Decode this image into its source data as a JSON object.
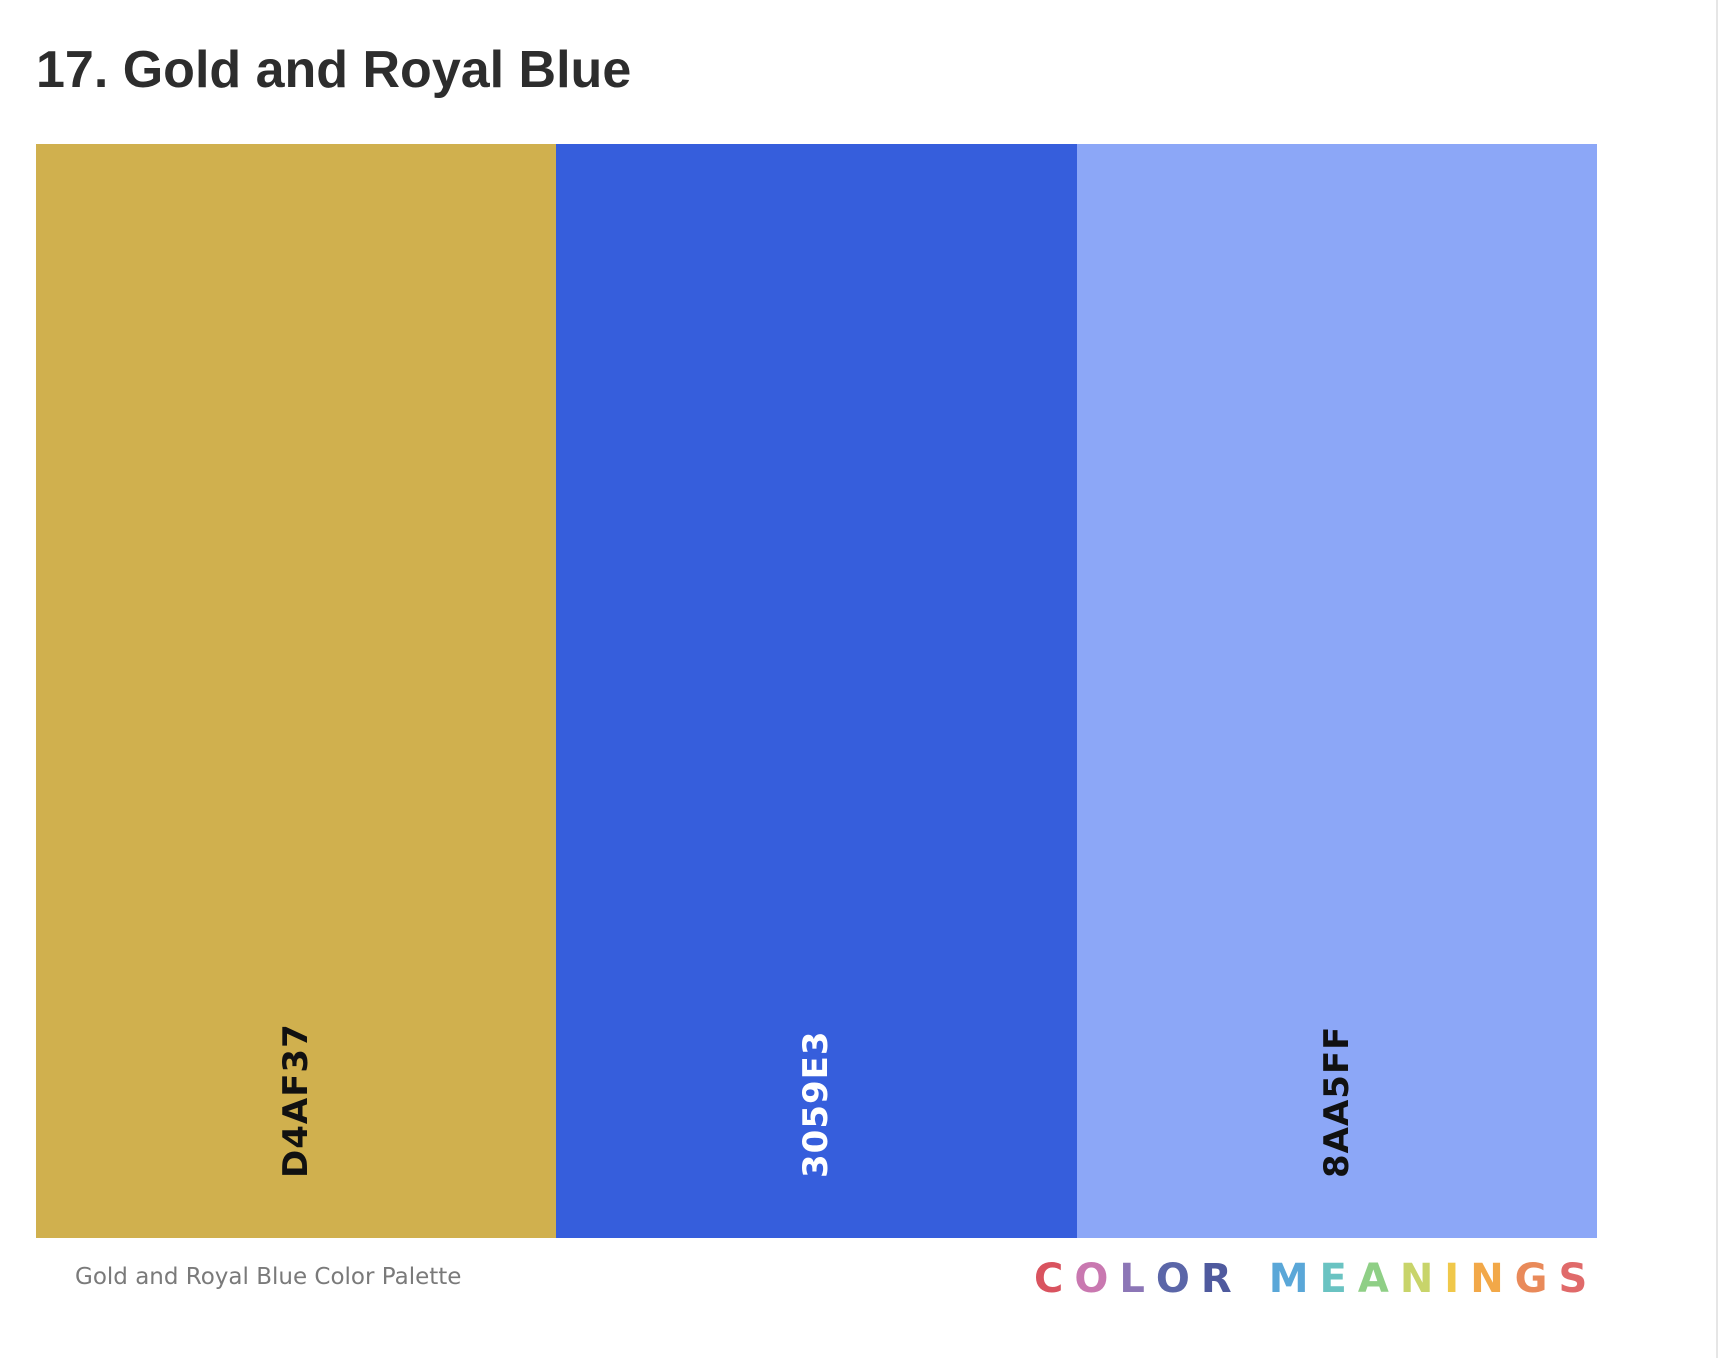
{
  "header": {
    "title": "17. Gold and Royal Blue"
  },
  "palette": {
    "swatches": [
      {
        "hex_label": "D4AF37",
        "fill_color": "#D0B04E",
        "label_color": "#111111"
      },
      {
        "hex_label": "3059E3",
        "fill_color": "#365EDC",
        "label_color": "#ffffff"
      },
      {
        "hex_label": "8AA5FF",
        "fill_color": "#8CA7F7",
        "label_color": "#111111"
      }
    ]
  },
  "footer": {
    "caption": "Gold and Royal Blue Color Palette",
    "brand": {
      "text": "COLOR MEANINGS",
      "letter_colors": [
        "#d9535f",
        "#c978b0",
        "#8c76b6",
        "#5b66a8",
        "#4f5a9e",
        "#5aa7d8",
        "#6ac3c2",
        "#8fcf86",
        "#c8d46a",
        "#f0c84a",
        "#f2a848",
        "#e98a5a",
        "#e06a6a"
      ]
    }
  }
}
